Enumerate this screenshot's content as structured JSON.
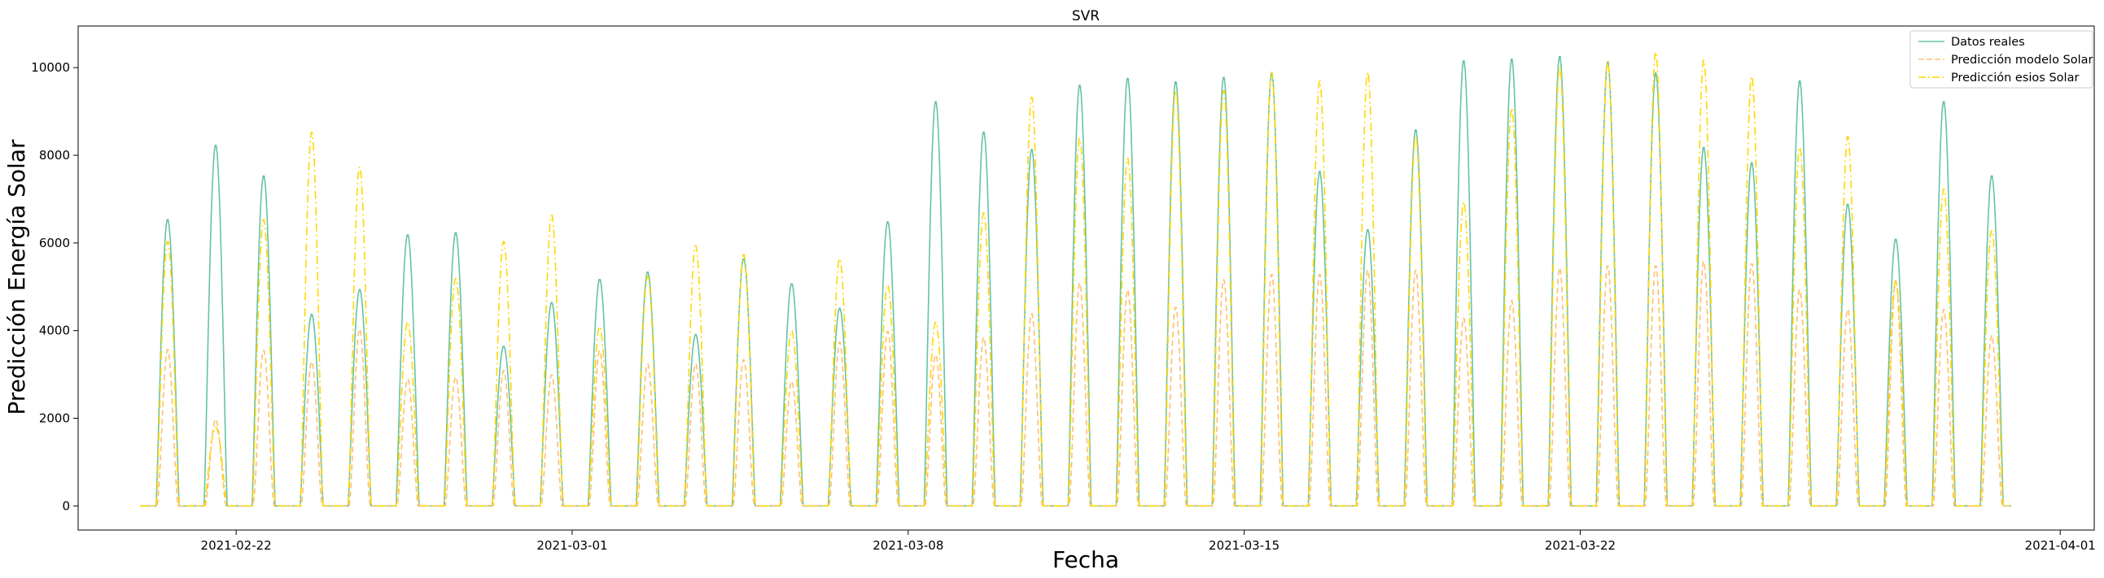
{
  "chart_data": {
    "type": "line",
    "title": "SVR",
    "xlabel": "Fecha",
    "ylabel": "Predicción Energía Solar",
    "x_ticks": [
      "2021-02-22",
      "2021-03-01",
      "2021-03-08",
      "2021-03-15",
      "2021-03-22",
      "2021-04-01"
    ],
    "y_ticks": [
      0,
      2000,
      4000,
      6000,
      8000,
      10000
    ],
    "xlim": [
      "2021-02-18T17:00",
      "2021-04-01T17:00"
    ],
    "ylim": [
      -550,
      10950
    ],
    "legend_position": "top-right",
    "x_start": "2021-02-20",
    "x_step": "1 day",
    "colors": {
      "Datos reales": "#66c2a5",
      "Predicción modelo Solar": "#fdbf6f",
      "Predicción esios Solar": "#ffd700"
    },
    "series": [
      {
        "name": "Datos reales",
        "daily_peaks": [
          6550,
          8250,
          7550,
          4380,
          4950,
          6200,
          6250,
          3650,
          4650,
          5180,
          5350,
          3920,
          5650,
          5080,
          4520,
          6500,
          9250,
          8550,
          8150,
          9620,
          9780,
          9700,
          9800,
          9880,
          7650,
          6320,
          8600,
          10180,
          10220,
          10280,
          10150,
          9900,
          8200,
          7850,
          9720,
          6900,
          6100,
          9250,
          7550
        ]
      },
      {
        "name": "Predicción modelo Solar",
        "daily_peaks": [
          3580,
          1980,
          3560,
          3300,
          4050,
          2900,
          2950,
          3100,
          3000,
          3550,
          3250,
          3250,
          3350,
          2850,
          3750,
          4000,
          3450,
          3850,
          4400,
          5100,
          4950,
          4550,
          5180,
          5300,
          5300,
          5400,
          5400,
          4300,
          4700,
          5450,
          5500,
          5500,
          5600,
          5550,
          4950,
          4500,
          5150,
          4500,
          3900
        ]
      },
      {
        "name": "Predicción esios Solar",
        "daily_peaks": [
          6050,
          1800,
          6550,
          8550,
          7750,
          4200,
          5200,
          6050,
          6650,
          4100,
          5250,
          5950,
          5750,
          4000,
          5650,
          5050,
          4200,
          6700,
          9350,
          8400,
          7950,
          9500,
          9500,
          9920,
          9720,
          9920,
          8450,
          6950,
          9100,
          10050,
          10180,
          10380,
          10200,
          9820,
          8200,
          8450,
          5150,
          7250,
          6300
        ]
      }
    ]
  }
}
